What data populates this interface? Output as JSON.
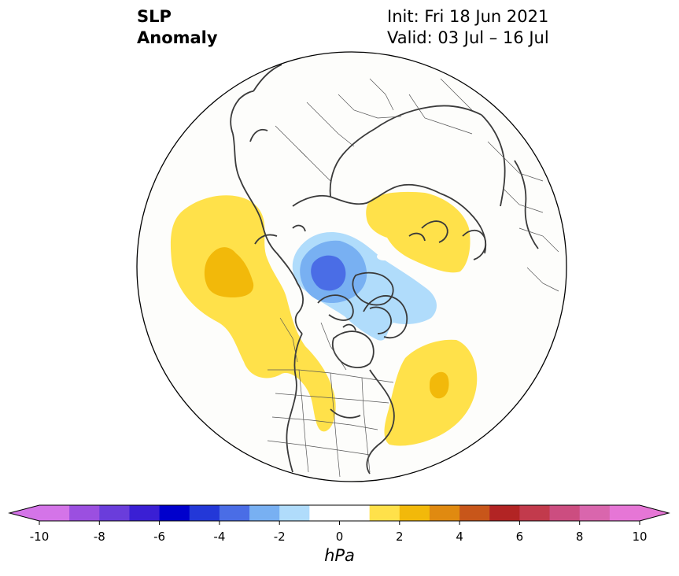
{
  "title": {
    "variable_line1": "SLP",
    "variable_line2": "Anomaly",
    "init": "Init: Fri 18 Jun 2021",
    "valid": "Valid: 03 Jul – 16 Jul"
  },
  "colorbar": {
    "unit": "hPa",
    "ticks": [
      "-10",
      "-8",
      "-6",
      "-4",
      "-2",
      "0",
      "2",
      "4",
      "6",
      "8",
      "10"
    ],
    "bins": [
      {
        "from": -10,
        "to": -9,
        "color": "#d474e8"
      },
      {
        "from": -9,
        "to": -8,
        "color": "#9b4fe0"
      },
      {
        "from": -8,
        "to": -7,
        "color": "#6a3ddb"
      },
      {
        "from": -7,
        "to": -6,
        "color": "#3a1fd4"
      },
      {
        "from": -6,
        "to": -5,
        "color": "#0000cc"
      },
      {
        "from": -5,
        "to": -4,
        "color": "#2338d8"
      },
      {
        "from": -4,
        "to": -3,
        "color": "#4a6de6"
      },
      {
        "from": -3,
        "to": -2,
        "color": "#78b0f2"
      },
      {
        "from": -2,
        "to": -1,
        "color": "#b0dcfb"
      },
      {
        "from": -1,
        "to": 1,
        "color": "#ffffff"
      },
      {
        "from": 1,
        "to": 2,
        "color": "#ffe14a"
      },
      {
        "from": 2,
        "to": 3,
        "color": "#f2b90a"
      },
      {
        "from": 3,
        "to": 4,
        "color": "#e08a10"
      },
      {
        "from": 4,
        "to": 5,
        "color": "#c8561a"
      },
      {
        "from": 5,
        "to": 6,
        "color": "#b22424"
      },
      {
        "from": 6,
        "to": 7,
        "color": "#c23a4c"
      },
      {
        "from": 7,
        "to": 8,
        "color": "#cc4d80"
      },
      {
        "from": 8,
        "to": 9,
        "color": "#d966ad"
      },
      {
        "from": 9,
        "to": 10,
        "color": "#e676d6"
      }
    ],
    "extend_low_color": "#d474e8",
    "extend_high_color": "#e676d6"
  },
  "map": {
    "projection": "north-polar-stereographic",
    "anomaly_features": [
      {
        "name": "north-pacific-high",
        "levels_hpa": [
          1,
          2
        ],
        "color_outer": "#ffe14a",
        "color_inner": "#f2b90a"
      },
      {
        "name": "arctic-low",
        "levels_hpa": [
          -1,
          -2,
          -3
        ],
        "color_outer": "#b0dcfb",
        "color_mid": "#78b0f2",
        "color_inner": "#4a6de6"
      },
      {
        "name": "siberian-high",
        "levels_hpa": [
          1
        ],
        "color_outer": "#ffe14a"
      },
      {
        "name": "north-atlantic-high",
        "levels_hpa": [
          1,
          2
        ],
        "color_outer": "#ffe14a",
        "color_inner": "#f2b90a"
      }
    ]
  }
}
